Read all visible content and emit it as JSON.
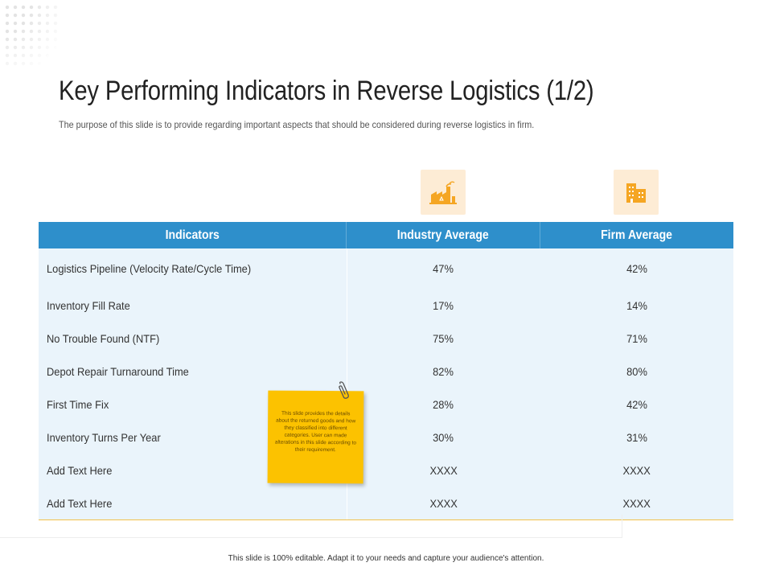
{
  "slide": {
    "title": "Key Performing Indicators in Reverse Logistics (1/2)",
    "subtitle": "The purpose of this slide is to provide regarding important aspects that should be considered during reverse logistics in firm.",
    "footer": "This slide is 100% editable. Adapt it to your needs and capture your audience's attention."
  },
  "icons": {
    "industry": "factory-icon",
    "firm": "office-building-icon",
    "clip": "paperclip-icon",
    "accent_bg": "#fdecd5",
    "accent_fg": "#f5a623"
  },
  "table": {
    "headers": [
      "Indicators",
      "Industry Average",
      "Firm Average"
    ],
    "header_color": "#2e8fcb",
    "body_color": "#eaf4fb",
    "rows": [
      {
        "indicator": "Logistics Pipeline (Velocity Rate/Cycle Time)",
        "industry": "47%",
        "firm": "42%"
      },
      {
        "indicator": "Inventory Fill Rate",
        "industry": "17%",
        "firm": "14%"
      },
      {
        "indicator": "No Trouble Found (NTF)",
        "industry": "75%",
        "firm": "71%"
      },
      {
        "indicator": "Depot Repair Turnaround Time",
        "industry": "82%",
        "firm": "80%"
      },
      {
        "indicator": "First Time Fix",
        "industry": "28%",
        "firm": "42%"
      },
      {
        "indicator": "Inventory Turns Per Year",
        "industry": "30%",
        "firm": "31%"
      },
      {
        "indicator": "Add Text Here",
        "industry": "XXXX",
        "firm": "XXXX"
      },
      {
        "indicator": "Add Text Here",
        "industry": "XXXX",
        "firm": "XXXX"
      }
    ]
  },
  "sticky_note": {
    "text": "This slide provides the details about the returned goods and how they classified into different categories. User can made alterations in this slide according to their requirement.",
    "color": "#fcc200"
  }
}
